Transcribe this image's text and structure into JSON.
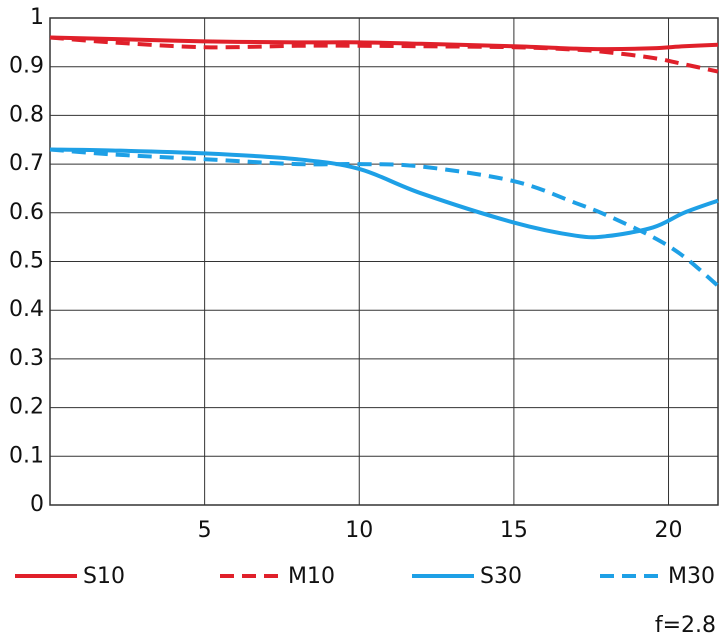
{
  "chart_data": {
    "type": "line",
    "annotation": "f=2.8",
    "x": [
      0,
      2,
      5,
      8,
      10,
      12,
      15,
      17,
      18,
      19.5,
      20.5,
      21.6
    ],
    "series": [
      {
        "name": "S10",
        "color": "#e0202a",
        "dash": false,
        "values": [
          0.96,
          0.957,
          0.952,
          0.95,
          0.95,
          0.947,
          0.942,
          0.937,
          0.936,
          0.938,
          0.942,
          0.945
        ]
      },
      {
        "name": "M10",
        "color": "#e0202a",
        "dash": true,
        "values": [
          0.96,
          0.95,
          0.94,
          0.943,
          0.943,
          0.942,
          0.94,
          0.935,
          0.93,
          0.918,
          0.905,
          0.89
        ]
      },
      {
        "name": "S30",
        "color": "#1ea0e6",
        "dash": false,
        "values": [
          0.73,
          0.728,
          0.722,
          0.71,
          0.69,
          0.64,
          0.58,
          0.553,
          0.552,
          0.57,
          0.6,
          0.625
        ]
      },
      {
        "name": "M30",
        "color": "#1ea0e6",
        "dash": true,
        "values": [
          0.73,
          0.72,
          0.71,
          0.7,
          0.7,
          0.695,
          0.665,
          0.62,
          0.595,
          0.55,
          0.51,
          0.45
        ]
      }
    ],
    "xlim": [
      0,
      21.6
    ],
    "xticks": [
      5,
      10,
      15,
      20
    ],
    "ylim": [
      0,
      1
    ],
    "yticks": [
      0,
      0.1,
      0.2,
      0.3,
      0.4,
      0.5,
      0.6,
      0.7,
      0.8,
      0.9,
      1
    ],
    "grid": true
  }
}
